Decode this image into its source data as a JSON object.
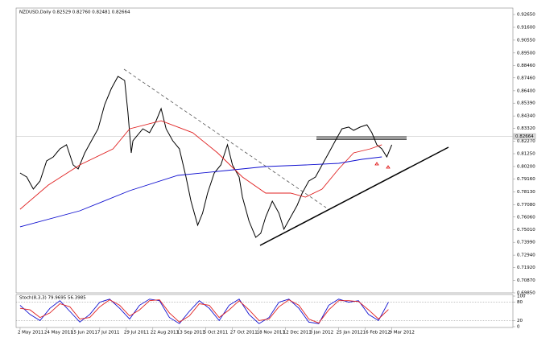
{
  "chart_data": [
    {
      "type": "line",
      "title": "NZDUSD,Daily  0.82529 0.82760 0.82481 0.82664",
      "xlim": [
        -2.4,
        297
      ],
      "ylim": [
        0.6985,
        0.9318
      ],
      "last_price": 0.82664,
      "xticks": [
        {
          "value": 0,
          "label": "2 May 2011"
        },
        {
          "value": 16,
          "label": "24 May 2011"
        },
        {
          "value": 32,
          "label": "15 Jun 2011"
        },
        {
          "value": 48,
          "label": "7 Jul 2011"
        },
        {
          "value": 64,
          "label": "29 Jul 2011"
        },
        {
          "value": 80,
          "label": "22 Aug 2011"
        },
        {
          "value": 96,
          "label": "13 Sep 2011"
        },
        {
          "value": 112,
          "label": "5 Oct 2011"
        },
        {
          "value": 128,
          "label": "27 Oct 2011"
        },
        {
          "value": 144,
          "label": "18 Nov 2011"
        },
        {
          "value": 160,
          "label": "12 Dec 2011"
        },
        {
          "value": 176,
          "label": "3 Jan 2012"
        },
        {
          "value": 192,
          "label": "25 Jan 2012"
        },
        {
          "value": 208,
          "label": "16 Feb 2012"
        },
        {
          "value": 224,
          "label": "9 Mar 2012"
        }
      ],
      "yticks": [
        {
          "value": 0.9265,
          "label": "0.92650"
        },
        {
          "value": 0.916,
          "label": "0.91600"
        },
        {
          "value": 0.9055,
          "label": "0.90550"
        },
        {
          "value": 0.895,
          "label": "0.89500"
        },
        {
          "value": 0.8846,
          "label": "0.88460"
        },
        {
          "value": 0.8746,
          "label": "0.87460"
        },
        {
          "value": 0.864,
          "label": "0.86400"
        },
        {
          "value": 0.8539,
          "label": "0.85390"
        },
        {
          "value": 0.8434,
          "label": "0.84340"
        },
        {
          "value": 0.8332,
          "label": "0.83320"
        },
        {
          "value": 0.8227,
          "label": "0.82270"
        },
        {
          "value": 0.8125,
          "label": "0.81250"
        },
        {
          "value": 0.802,
          "label": "0.80200"
        },
        {
          "value": 0.7916,
          "label": "0.79160"
        },
        {
          "value": 0.7813,
          "label": "0.78130"
        },
        {
          "value": 0.7708,
          "label": "0.77080"
        },
        {
          "value": 0.7606,
          "label": "0.76060"
        },
        {
          "value": 0.7501,
          "label": "0.75010"
        },
        {
          "value": 0.7399,
          "label": "0.73990"
        },
        {
          "value": 0.7294,
          "label": "0.72940"
        },
        {
          "value": 0.7192,
          "label": "0.71920"
        },
        {
          "value": 0.7087,
          "label": "0.70870"
        },
        {
          "value": 0.6985,
          "label": "0.69850"
        }
      ],
      "series": [
        {
          "color": "#000000",
          "x": [
            0,
            4,
            8,
            12,
            16,
            20,
            24,
            28,
            32,
            35,
            39,
            43,
            47,
            51,
            55,
            59,
            63,
            65,
            67,
            68,
            70,
            74,
            78,
            82,
            85,
            88,
            92,
            96,
            100,
            103,
            107,
            110,
            113,
            117,
            121,
            125,
            128,
            132,
            134,
            138,
            142,
            145,
            148,
            152,
            156,
            159,
            163,
            167,
            170,
            174,
            178,
            182,
            186,
            190,
            194,
            198,
            201,
            205,
            209,
            212,
            215,
            218,
            221,
            224
          ],
          "values": [
            0.7967,
            0.7934,
            0.7835,
            0.7901,
            0.8066,
            0.8099,
            0.8165,
            0.8198,
            0.8033,
            0.8,
            0.8132,
            0.8231,
            0.8329,
            0.8527,
            0.8659,
            0.8758,
            0.8725,
            0.8461,
            0.8132,
            0.8231,
            0.8264,
            0.8329,
            0.8297,
            0.8395,
            0.8494,
            0.8329,
            0.8231,
            0.8165,
            0.7934,
            0.7736,
            0.7539,
            0.7638,
            0.7802,
            0.7967,
            0.8033,
            0.8198,
            0.8033,
            0.7934,
            0.7769,
            0.7572,
            0.744,
            0.7473,
            0.7605,
            0.7736,
            0.7638,
            0.7506,
            0.7605,
            0.7703,
            0.7802,
            0.7901,
            0.7934,
            0.8033,
            0.8132,
            0.8231,
            0.8329,
            0.8343,
            0.8316,
            0.8343,
            0.8362,
            0.8297,
            0.8198,
            0.8165,
            0.8099,
            0.8198
          ]
        },
        {
          "color": "#e02020",
          "x": [
            0,
            17,
            36,
            56,
            66,
            85,
            104,
            119,
            134,
            148,
            163,
            172,
            182,
            192,
            201,
            211,
            218
          ],
          "values": [
            0.767,
            0.7868,
            0.8033,
            0.8165,
            0.8329,
            0.8395,
            0.8297,
            0.8132,
            0.7934,
            0.7802,
            0.7802,
            0.7769,
            0.7835,
            0.8,
            0.8132,
            0.8165,
            0.8198
          ]
        },
        {
          "color": "#1010d0",
          "x": [
            0,
            36,
            66,
            95,
            124,
            148,
            172,
            192,
            206,
            218
          ],
          "values": [
            0.7526,
            0.7657,
            0.7822,
            0.7947,
            0.7987,
            0.802,
            0.8033,
            0.8046,
            0.8079,
            0.8099
          ]
        }
      ]
    },
    {
      "type": "line",
      "title": "Stoch(8,3,3) 79.9695 56.3985",
      "xlim": [
        -2.4,
        297
      ],
      "ylim": [
        0,
        100
      ],
      "yticks": [
        100,
        80,
        20,
        0
      ],
      "series": [
        {
          "color": "#1010d0",
          "x": [
            0,
            6,
            12,
            18,
            24,
            30,
            36,
            42,
            48,
            54,
            60,
            66,
            72,
            78,
            84,
            90,
            96,
            102,
            108,
            114,
            120,
            126,
            132,
            138,
            144,
            150,
            156,
            162,
            168,
            174,
            180,
            186,
            192,
            198,
            204,
            210,
            216,
            222
          ],
          "values": [
            70,
            40,
            20,
            60,
            85,
            50,
            15,
            40,
            80,
            90,
            60,
            25,
            70,
            90,
            85,
            30,
            10,
            50,
            85,
            60,
            20,
            70,
            90,
            40,
            10,
            30,
            80,
            90,
            60,
            15,
            10,
            70,
            90,
            80,
            85,
            40,
            20,
            80
          ]
        },
        {
          "color": "#e02020",
          "x": [
            0,
            6,
            12,
            18,
            24,
            30,
            36,
            42,
            48,
            54,
            60,
            66,
            72,
            78,
            84,
            90,
            96,
            102,
            108,
            114,
            120,
            126,
            132,
            138,
            144,
            150,
            156,
            162,
            168,
            174,
            180,
            186,
            192,
            198,
            204,
            210,
            216,
            222
          ],
          "values": [
            60,
            55,
            30,
            45,
            75,
            65,
            25,
            30,
            65,
            88,
            70,
            35,
            55,
            85,
            88,
            45,
            15,
            35,
            75,
            70,
            30,
            55,
            85,
            55,
            20,
            25,
            65,
            88,
            70,
            25,
            12,
            55,
            85,
            85,
            82,
            55,
            25,
            56
          ]
        }
      ]
    }
  ]
}
